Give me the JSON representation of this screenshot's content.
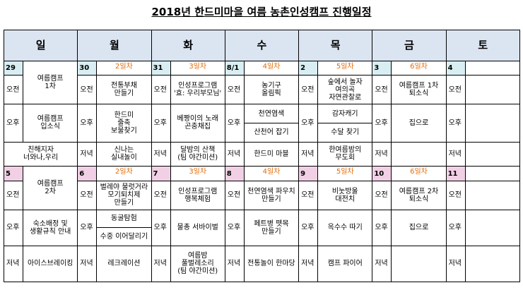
{
  "title": "2018년 한드미마을 여름 농촌인성캠프 진행일정",
  "headers": [
    "일",
    "월",
    "화",
    "수",
    "목",
    "금",
    "토"
  ],
  "slots": {
    "morning": "오전",
    "afternoon": "오후",
    "evening": "저녁"
  },
  "week1": {
    "sun": {
      "num": "29",
      "m": "여름캠프\n1차",
      "a": "여름캠프\n입소식",
      "e": "친해지자\n너와나,우리"
    },
    "mon": {
      "num": "30",
      "day": "2일차",
      "m": "전통부채\n만들기",
      "a": "한드미\n줄축\n보물찾기",
      "e": "신나는\n실내놀이"
    },
    "tue": {
      "num": "31",
      "day": "3일차",
      "m": "인성프로그램\n'효: 우리부모님'",
      "a": "베짱이의 노래\n곤충채집",
      "e": "달밤의 산책\n(팀 야간미션)"
    },
    "wed": {
      "num": "8/1",
      "day": "4일차",
      "m": "농기구\n올림픽",
      "a1": "천연염색",
      "a2": "산천어 잡기",
      "e": "한드미 마블"
    },
    "thu": {
      "num": "2",
      "day": "5일차",
      "m": "숲에서 놀자\n여의곡\n자연관찰로",
      "a1": "감자캐기",
      "a2": "수달 찾기",
      "e": "한여름밤의\n무도회"
    },
    "fri": {
      "num": "3",
      "day": "6일차",
      "m": "여름캠프 1차\n퇴소식",
      "a": "집으로",
      "e": ""
    },
    "sat": {
      "num": "4",
      "m": "",
      "a": "",
      "e": ""
    }
  },
  "week2": {
    "sun": {
      "num": "5",
      "m": "여름캠프\n2차",
      "a": "숙소배정 및\n생활규칙 안내",
      "e": "아이스브레이킹"
    },
    "mon": {
      "num": "6",
      "day": "2일차",
      "m": "벌레야 물럿거라\n모기퇴치제\n만들기",
      "a1": "동굴탐험",
      "a2": "수중 이어달리기",
      "e": "레크레이션"
    },
    "tue": {
      "num": "7",
      "day": "3일차",
      "m": "인성프로그램\n행복체험",
      "a": "물총 서바이벌",
      "e": "여름밤\n풀벌레소리\n(팀 야간미션)"
    },
    "wed": {
      "num": "8",
      "day": "4일차",
      "m": "천연염색 파우치\n만들기",
      "a": "페트병 뗏목\n만들기",
      "e": "전통놀이 한마당"
    },
    "thu": {
      "num": "9",
      "day": "5일차",
      "m": "비눗방울\n대전치",
      "a": "옥수수 따기",
      "e": "캠프 파이어"
    },
    "fri": {
      "num": "10",
      "day": "6일차",
      "m": "여름캠프 2차\n퇴소식",
      "a": "집으로",
      "e": ""
    },
    "sat": {
      "num": "11",
      "m": "",
      "a": "",
      "e": ""
    }
  }
}
